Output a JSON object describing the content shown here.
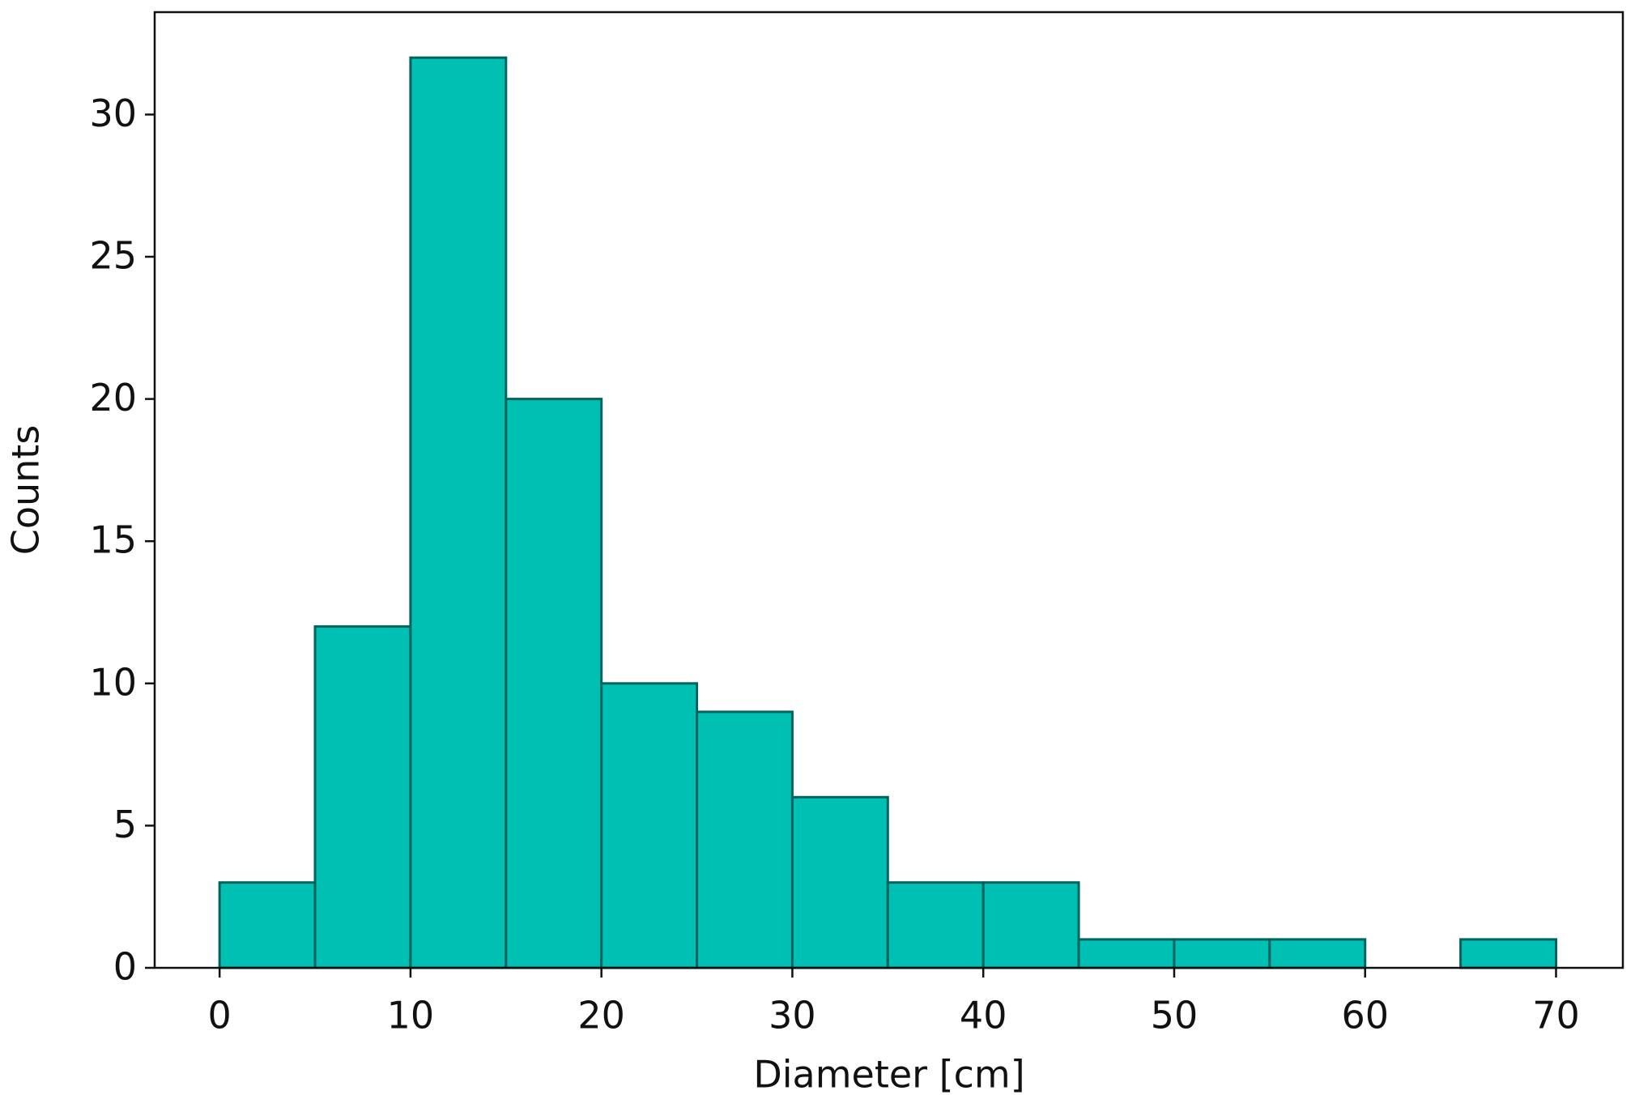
{
  "chart_data": {
    "type": "histogram",
    "x_label": "Diameter [cm]",
    "y_label": "Counts",
    "bins": [
      0,
      5,
      10,
      15,
      20,
      25,
      30,
      35,
      40,
      45,
      50,
      55,
      60,
      65,
      70
    ],
    "values": [
      3,
      12,
      32,
      20,
      10,
      9,
      6,
      3,
      3,
      1,
      1,
      1,
      0,
      1
    ],
    "color": "#00bfb3",
    "edge_color": "#00635c",
    "xlim": [
      -3.4,
      73.5
    ],
    "ylim": [
      0,
      33.6
    ],
    "xticks": [
      0,
      10,
      20,
      30,
      40,
      50,
      60,
      70
    ],
    "yticks": [
      0,
      5,
      10,
      15,
      20,
      25,
      30
    ]
  }
}
